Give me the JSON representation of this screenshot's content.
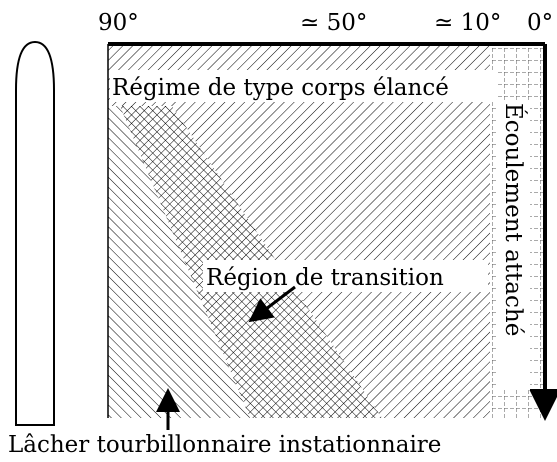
{
  "angles": [
    "90°",
    "≃ 50°",
    "≃ 10°",
    "0°"
  ],
  "regions": {
    "slender_body": "Régime de type corps élancé",
    "attached_flow": "Écoulement attaché",
    "transition": "Région de transition",
    "unsteady_shedding": "Lâcher tourbillonnaire instationnaire"
  }
}
